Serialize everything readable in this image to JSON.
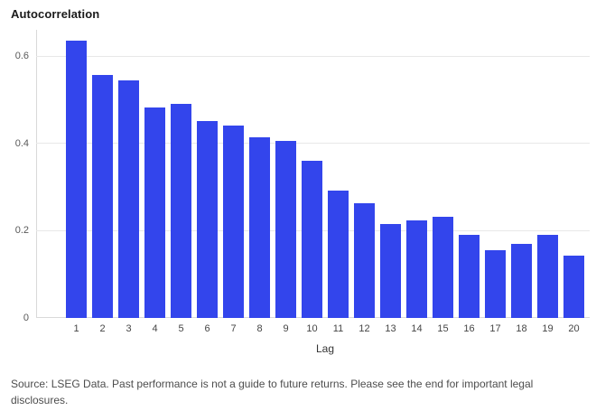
{
  "title": "Autocorrelation",
  "footer": "Source: LSEG Data. Past performance is not a guide to future returns. Please see the end for important legal disclosures.",
  "colors": {
    "bar": "#3345EC",
    "gridline": "#e8e8e8",
    "axis_line": "#d9d9d9",
    "title_text": "#1a1a1a",
    "tick_text": "#595959",
    "footer_text": "#4d4d4d"
  },
  "chart_data": {
    "type": "bar",
    "title": "Autocorrelation",
    "xlabel": "Lag",
    "ylabel": "",
    "categories": [
      1,
      2,
      3,
      4,
      5,
      6,
      7,
      8,
      9,
      10,
      11,
      12,
      13,
      14,
      15,
      16,
      17,
      18,
      19,
      20
    ],
    "values": [
      0.635,
      0.557,
      0.545,
      0.483,
      0.49,
      0.452,
      0.441,
      0.414,
      0.405,
      0.359,
      0.292,
      0.262,
      0.215,
      0.224,
      0.231,
      0.191,
      0.155,
      0.17,
      0.19,
      0.142
    ],
    "yticks": [
      0,
      0.2,
      0.4,
      0.6
    ],
    "ylim": [
      0,
      0.66
    ],
    "grid": true,
    "legend": false,
    "bar_color": "#3345EC"
  }
}
